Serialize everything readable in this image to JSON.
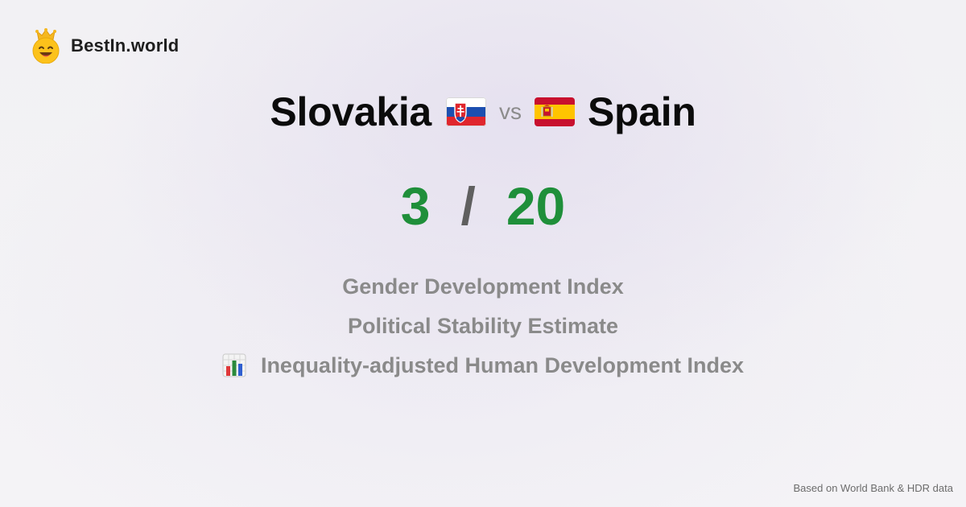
{
  "brand": {
    "name": "BestIn.world",
    "logo_icon": "crowned-smiley-icon"
  },
  "comparison": {
    "left_country": "Slovakia",
    "left_flag_icon": "slovakia-flag-icon",
    "vs_label": "vs",
    "right_country": "Spain",
    "right_flag_icon": "spain-flag-icon"
  },
  "score": {
    "left": "3",
    "separator": "/",
    "right": "20",
    "color": "#1f8f3a"
  },
  "metrics": [
    {
      "label": "Gender Development Index"
    },
    {
      "label": "Political Stability Estimate"
    },
    {
      "label": "Inequality-adjusted Human Development Index",
      "icon": "bar-chart-icon"
    }
  ],
  "footer": {
    "source_text": "Based on World Bank & HDR data"
  }
}
